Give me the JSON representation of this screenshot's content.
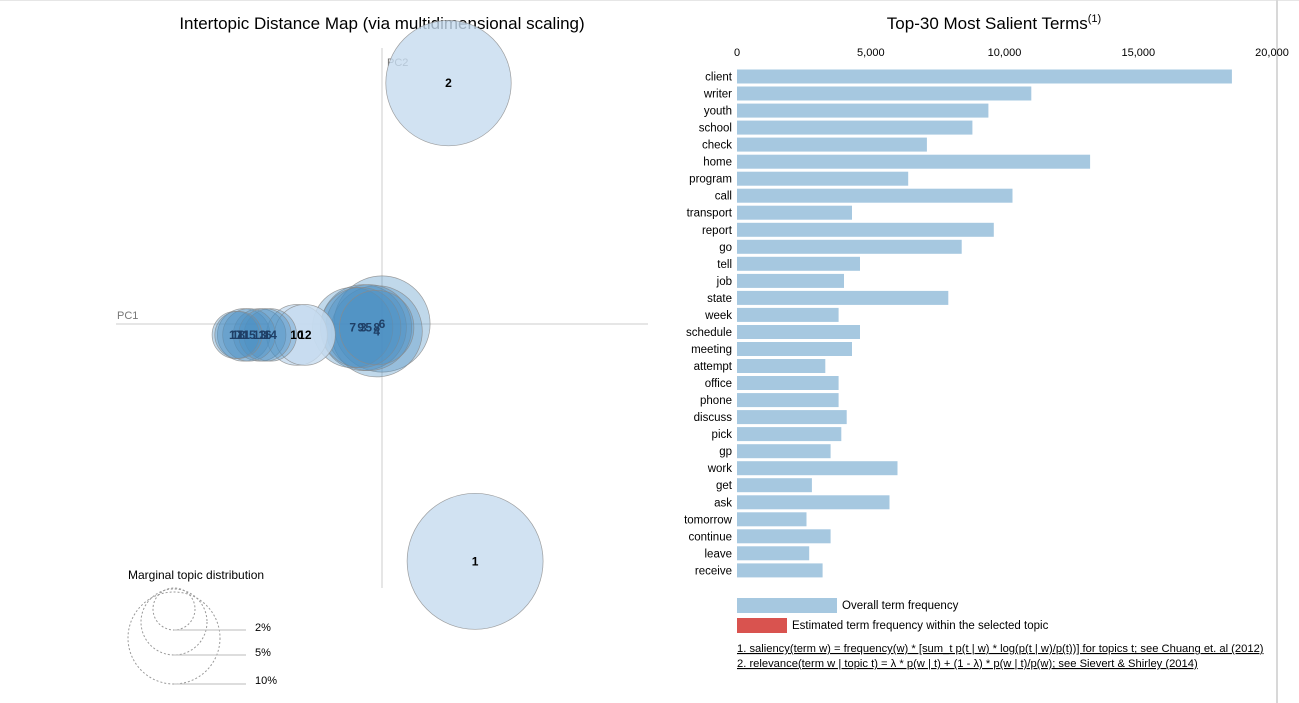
{
  "left_panel": {
    "title": "Intertopic Distance Map (via multidimensional scaling)",
    "axis_pc1": "PC1",
    "axis_pc2": "PC2",
    "marginal_title": "Marginal topic distribution",
    "marginal_legend": [
      "2%",
      "5%",
      "10%"
    ]
  },
  "right_panel": {
    "title": "Top-30 Most Salient Terms",
    "title_sup": "(1)",
    "legend_overall": "Overall term frequency",
    "legend_estimated": "Estimated term frequency within the selected topic",
    "footnote_1": "1. saliency(term w) = frequency(w) * [sum_t p(t | w) * log(p(t | w)/p(t))] for topics t; see Chuang et. al (2012)",
    "footnote_2": "2. relevance(term w | topic t) = λ * p(w | t) + (1 - λ) * p(w | t)/p(w); see Sievert & Shirley (2014)"
  },
  "colors": {
    "bar_overall": "#a6c8e0",
    "bar_estimated": "#d9534f",
    "topic_default": "#c6dbef",
    "topic_cluster": "#4a8fc3",
    "axis": "#cccccc"
  },
  "chart_data": [
    {
      "type": "scatter",
      "xlabel": "PC1",
      "ylabel": "PC2",
      "note": "bubble area proportional to marginal topic distribution",
      "topics": [
        {
          "id": "1",
          "pc1": 0.35,
          "pc2": -0.65,
          "size_pct": 10.0,
          "highlight": false
        },
        {
          "id": "2",
          "pc1": 0.25,
          "pc2": 0.66,
          "size_pct": 8.5,
          "highlight": false
        },
        {
          "id": "3",
          "pc1": -0.07,
          "pc2": -0.01,
          "size_pct": 4.0,
          "highlight": true
        },
        {
          "id": "4",
          "pc1": -0.02,
          "pc2": -0.02,
          "size_pct": 4.5,
          "highlight": true
        },
        {
          "id": "5",
          "pc1": -0.05,
          "pc2": -0.01,
          "size_pct": 4.0,
          "highlight": true
        },
        {
          "id": "6",
          "pc1": 0.0,
          "pc2": 0.0,
          "size_pct": 5.0,
          "highlight": true
        },
        {
          "id": "7",
          "pc1": -0.11,
          "pc2": -0.01,
          "size_pct": 3.5,
          "highlight": true
        },
        {
          "id": "8",
          "pc1": -0.02,
          "pc2": -0.01,
          "size_pct": 3.0,
          "highlight": true
        },
        {
          "id": "9",
          "pc1": -0.08,
          "pc2": -0.01,
          "size_pct": 3.5,
          "highlight": true
        },
        {
          "id": "10",
          "pc1": -0.32,
          "pc2": -0.03,
          "size_pct": 2.0,
          "highlight": false
        },
        {
          "id": "11",
          "pc1": -0.52,
          "pc2": -0.03,
          "size_pct": 1.5,
          "highlight": true
        },
        {
          "id": "12",
          "pc1": -0.29,
          "pc2": -0.03,
          "size_pct": 2.0,
          "highlight": false
        },
        {
          "id": "13",
          "pc1": -0.46,
          "pc2": -0.03,
          "size_pct": 1.5,
          "highlight": true
        },
        {
          "id": "14",
          "pc1": -0.42,
          "pc2": -0.03,
          "size_pct": 1.5,
          "highlight": true
        },
        {
          "id": "15",
          "pc1": -0.5,
          "pc2": -0.03,
          "size_pct": 1.5,
          "highlight": true
        },
        {
          "id": "16",
          "pc1": -0.44,
          "pc2": -0.03,
          "size_pct": 1.5,
          "highlight": true
        },
        {
          "id": "17",
          "pc1": -0.55,
          "pc2": -0.03,
          "size_pct": 1.2,
          "highlight": true
        },
        {
          "id": "18",
          "pc1": -0.54,
          "pc2": -0.03,
          "size_pct": 1.2,
          "highlight": true
        }
      ]
    },
    {
      "type": "bar",
      "orientation": "horizontal",
      "title": "Top-30 Most Salient Terms",
      "xlim": [
        0,
        20000
      ],
      "xticks": [
        0,
        5000,
        10000,
        15000,
        20000
      ],
      "xtick_labels": [
        "0",
        "5,000",
        "10,000",
        "15,000",
        "20,000"
      ],
      "categories": [
        "client",
        "writer",
        "youth",
        "school",
        "check",
        "home",
        "program",
        "call",
        "transport",
        "report",
        "go",
        "tell",
        "job",
        "state",
        "week",
        "schedule",
        "meeting",
        "attempt",
        "office",
        "phone",
        "discuss",
        "pick",
        "gp",
        "work",
        "get",
        "ask",
        "tomorrow",
        "continue",
        "leave",
        "receive"
      ],
      "series": [
        {
          "name": "Overall term frequency",
          "values": [
            18500,
            11000,
            9400,
            8800,
            7100,
            13200,
            6400,
            10300,
            4300,
            9600,
            8400,
            4600,
            4000,
            7900,
            3800,
            4600,
            4300,
            3300,
            3800,
            3800,
            4100,
            3900,
            3500,
            6000,
            2800,
            5700,
            2600,
            3500,
            2700,
            3200
          ]
        }
      ]
    }
  ]
}
